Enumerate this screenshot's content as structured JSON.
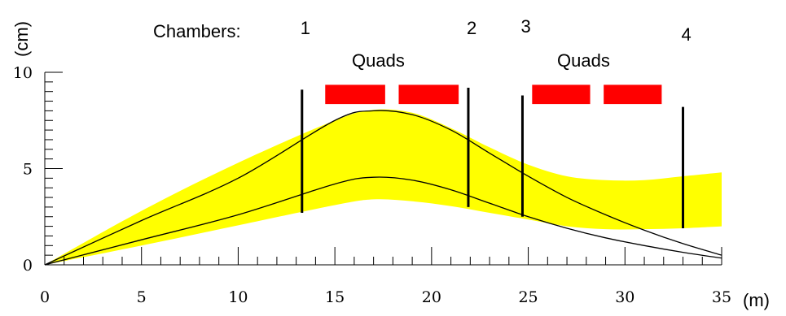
{
  "labels": {
    "y_unit": "(cm)",
    "x_unit": "(m)",
    "chambers_label": "Chambers:",
    "quads_left": "Quads",
    "quads_right": "Quads"
  },
  "chambers": [
    {
      "label": "1",
      "z": 13.3,
      "y_low": 2.7,
      "y_high": 9.1
    },
    {
      "label": "2",
      "z": 21.9,
      "y_low": 3.0,
      "y_high": 9.2
    },
    {
      "label": "3",
      "z": 24.7,
      "y_low": 2.5,
      "y_high": 8.8
    },
    {
      "label": "4",
      "z": 33.0,
      "y_low": 1.9,
      "y_high": 8.2
    }
  ],
  "quads": [
    {
      "z0": 14.5,
      "z1": 17.6
    },
    {
      "z0": 18.3,
      "z1": 21.4
    },
    {
      "z0": 25.2,
      "z1": 28.2
    },
    {
      "z0": 28.9,
      "z1": 31.9
    }
  ],
  "quad_band": {
    "y_low": 8.35,
    "y_high": 9.35
  },
  "chart_data": {
    "type": "line",
    "xlim": [
      0,
      35
    ],
    "ylim": [
      0,
      10
    ],
    "x_ticks": [
      0,
      5,
      10,
      15,
      20,
      25,
      30,
      35
    ],
    "y_ticks": [
      0,
      5,
      10
    ],
    "series": [
      {
        "kind": "band",
        "x": [
          0,
          5,
          10,
          15,
          17,
          19,
          21,
          23,
          25,
          27,
          29,
          31,
          33,
          35
        ],
        "upper": [
          0,
          2.8,
          5.3,
          7.5,
          8.05,
          7.9,
          7.1,
          6.1,
          5.2,
          4.6,
          4.4,
          4.4,
          4.6,
          4.8
        ],
        "lower": [
          0,
          1.0,
          2.05,
          3.1,
          3.4,
          3.3,
          3.05,
          2.7,
          2.35,
          2.0,
          1.85,
          1.85,
          1.9,
          2.0
        ]
      },
      {
        "kind": "line",
        "x": [
          0,
          5,
          10,
          15,
          17,
          19,
          21,
          23,
          25,
          27,
          29,
          31,
          33,
          35
        ],
        "y": [
          0,
          2.3,
          4.5,
          7.5,
          8.0,
          7.8,
          7.0,
          5.8,
          4.6,
          3.5,
          2.6,
          1.8,
          1.1,
          0.5
        ]
      },
      {
        "kind": "line",
        "x": [
          0,
          5,
          10,
          15,
          17,
          19,
          21,
          23,
          25,
          27,
          29,
          31,
          33,
          35
        ],
        "y": [
          0,
          1.3,
          2.6,
          4.2,
          4.55,
          4.4,
          3.9,
          3.2,
          2.5,
          1.9,
          1.4,
          1.0,
          0.65,
          0.35
        ]
      }
    ]
  },
  "colors": {
    "band": "#ffff00",
    "quad": "#ff0000",
    "line": "#000000"
  }
}
